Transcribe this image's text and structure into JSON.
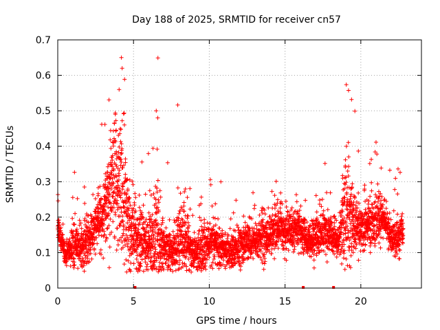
{
  "chart_data": {
    "type": "scatter",
    "title": "Day 188 of 2025, SRMTID for receiver cn57",
    "xlabel": "GPS time / hours",
    "ylabel": "SRMTID / TECUs",
    "xlim": [
      0,
      24
    ],
    "ylim": [
      0,
      0.7
    ],
    "x_ticks": [
      0,
      5,
      10,
      15,
      20
    ],
    "y_ticks": [
      0,
      0.1,
      0.2,
      0.3,
      0.4,
      0.5,
      0.6,
      0.7
    ],
    "x_tick_labels": [
      "0",
      "5",
      "10",
      "15",
      "20"
    ],
    "y_tick_labels": [
      "0",
      "0.1",
      "0.2",
      "0.3",
      "0.4",
      "0.5",
      "0.6",
      "0.7"
    ],
    "grid": true,
    "marker": "plus",
    "color": "#ff0000",
    "x_range_data": [
      0.0,
      22.8
    ],
    "zero_markers_x": [
      5.1,
      16.2,
      18.2
    ],
    "series": [
      {
        "name": "SRMTID",
        "profile_hours": [
          0.0,
          0.5,
          1.0,
          1.5,
          2.0,
          2.5,
          3.0,
          3.5,
          3.8,
          4.2,
          4.6,
          5.0,
          5.5,
          6.0,
          6.5,
          7.0,
          7.5,
          8.0,
          8.5,
          9.0,
          9.5,
          10.0,
          10.5,
          11.0,
          11.5,
          12.0,
          12.5,
          13.0,
          13.5,
          14.0,
          14.5,
          15.0,
          15.5,
          16.0,
          16.5,
          17.0,
          17.5,
          18.0,
          18.5,
          19.0,
          19.5,
          20.0,
          20.5,
          21.0,
          21.5,
          22.0,
          22.5,
          22.8
        ],
        "median_tecu": [
          0.18,
          0.09,
          0.12,
          0.11,
          0.13,
          0.17,
          0.21,
          0.27,
          0.3,
          0.28,
          0.2,
          0.15,
          0.13,
          0.12,
          0.15,
          0.11,
          0.1,
          0.13,
          0.14,
          0.09,
          0.11,
          0.12,
          0.12,
          0.11,
          0.1,
          0.12,
          0.13,
          0.13,
          0.14,
          0.15,
          0.16,
          0.16,
          0.16,
          0.17,
          0.13,
          0.14,
          0.16,
          0.15,
          0.13,
          0.22,
          0.19,
          0.16,
          0.18,
          0.19,
          0.2,
          0.14,
          0.14,
          0.17
        ],
        "spread_tecu": [
          0.04,
          0.02,
          0.05,
          0.04,
          0.06,
          0.06,
          0.08,
          0.12,
          0.16,
          0.18,
          0.12,
          0.08,
          0.1,
          0.07,
          0.16,
          0.06,
          0.05,
          0.08,
          0.07,
          0.04,
          0.08,
          0.05,
          0.05,
          0.04,
          0.04,
          0.05,
          0.05,
          0.05,
          0.06,
          0.05,
          0.05,
          0.05,
          0.05,
          0.05,
          0.04,
          0.05,
          0.05,
          0.05,
          0.04,
          0.14,
          0.08,
          0.05,
          0.06,
          0.06,
          0.05,
          0.04,
          0.05,
          0.04
        ],
        "peak_points": [
          {
            "x": 3.8,
            "y": 0.49
          },
          {
            "x": 4.05,
            "y": 0.56
          },
          {
            "x": 4.2,
            "y": 0.65
          },
          {
            "x": 4.25,
            "y": 0.62
          },
          {
            "x": 4.4,
            "y": 0.46
          },
          {
            "x": 6.5,
            "y": 0.5
          },
          {
            "x": 6.6,
            "y": 0.48
          },
          {
            "x": 19.05,
            "y": 0.4
          },
          {
            "x": 19.2,
            "y": 0.37
          }
        ]
      }
    ]
  }
}
